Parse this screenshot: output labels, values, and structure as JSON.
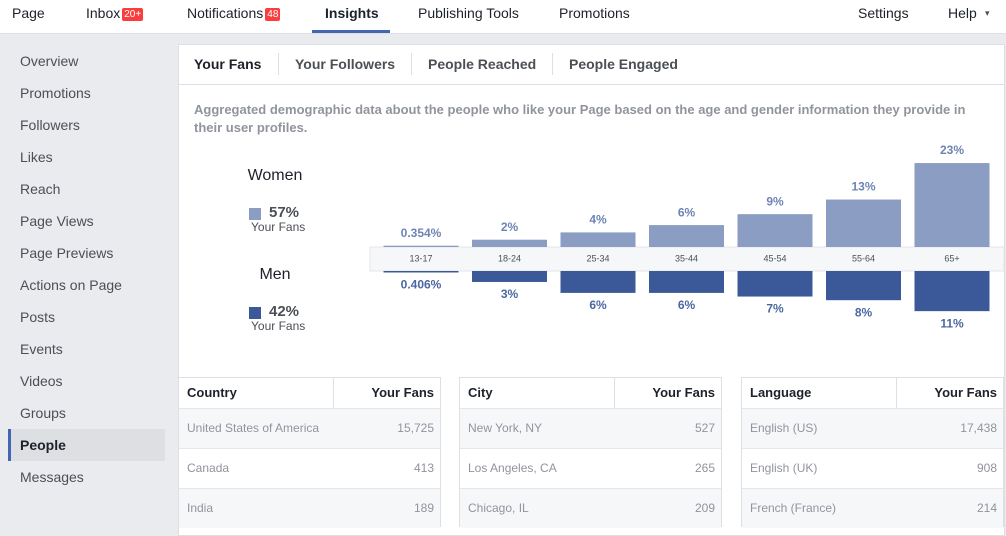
{
  "nav": {
    "items": [
      {
        "label": "Page"
      },
      {
        "label": "Inbox",
        "badge": "20+"
      },
      {
        "label": "Notifications",
        "badge": "48"
      },
      {
        "label": "Insights"
      },
      {
        "label": "Publishing Tools"
      },
      {
        "label": "Promotions"
      },
      {
        "label": "Settings"
      },
      {
        "label": "Help"
      }
    ]
  },
  "sidebar": {
    "items": [
      "Overview",
      "Promotions",
      "Followers",
      "Likes",
      "Reach",
      "Page Views",
      "Page Previews",
      "Actions on Page",
      "Posts",
      "Events",
      "Videos",
      "Groups",
      "People",
      "Messages"
    ]
  },
  "tabs": [
    "Your Fans",
    "Your Followers",
    "People Reached",
    "People Engaged"
  ],
  "description": "Aggregated demographic data about the people who like your Page based on the age and gender information they provide in their user profiles.",
  "chart_data": {
    "type": "bar",
    "categories": [
      "13-17",
      "18-24",
      "25-34",
      "35-44",
      "45-54",
      "55-64",
      "65+"
    ],
    "share_caption": "Your Fans",
    "series": [
      {
        "name": "Women",
        "color": "#8b9dc3",
        "share": 57,
        "share_label": "57%",
        "values": [
          0.354,
          2,
          4,
          6,
          9,
          13,
          23
        ],
        "value_labels": [
          "0.354%",
          "2%",
          "4%",
          "6%",
          "9%",
          "13%",
          "23%"
        ]
      },
      {
        "name": "Men",
        "color": "#3b5998",
        "share": 42,
        "share_label": "42%",
        "values": [
          0.406,
          3,
          6,
          6,
          7,
          8,
          11
        ],
        "value_labels": [
          "0.406%",
          "3%",
          "6%",
          "6%",
          "7%",
          "8%",
          "11%"
        ]
      }
    ]
  },
  "tables": [
    {
      "headers": [
        "Country",
        "Your Fans"
      ],
      "rows": [
        [
          "United States of America",
          "15,725"
        ],
        [
          "Canada",
          "413"
        ],
        [
          "India",
          "189"
        ]
      ]
    },
    {
      "headers": [
        "City",
        "Your Fans"
      ],
      "rows": [
        [
          "New York, NY",
          "527"
        ],
        [
          "Los Angeles, CA",
          "265"
        ],
        [
          "Chicago, IL",
          "209"
        ]
      ]
    },
    {
      "headers": [
        "Language",
        "Your Fans"
      ],
      "rows": [
        [
          "English (US)",
          "17,438"
        ],
        [
          "English (UK)",
          "908"
        ],
        [
          "French (France)",
          "214"
        ]
      ]
    }
  ]
}
